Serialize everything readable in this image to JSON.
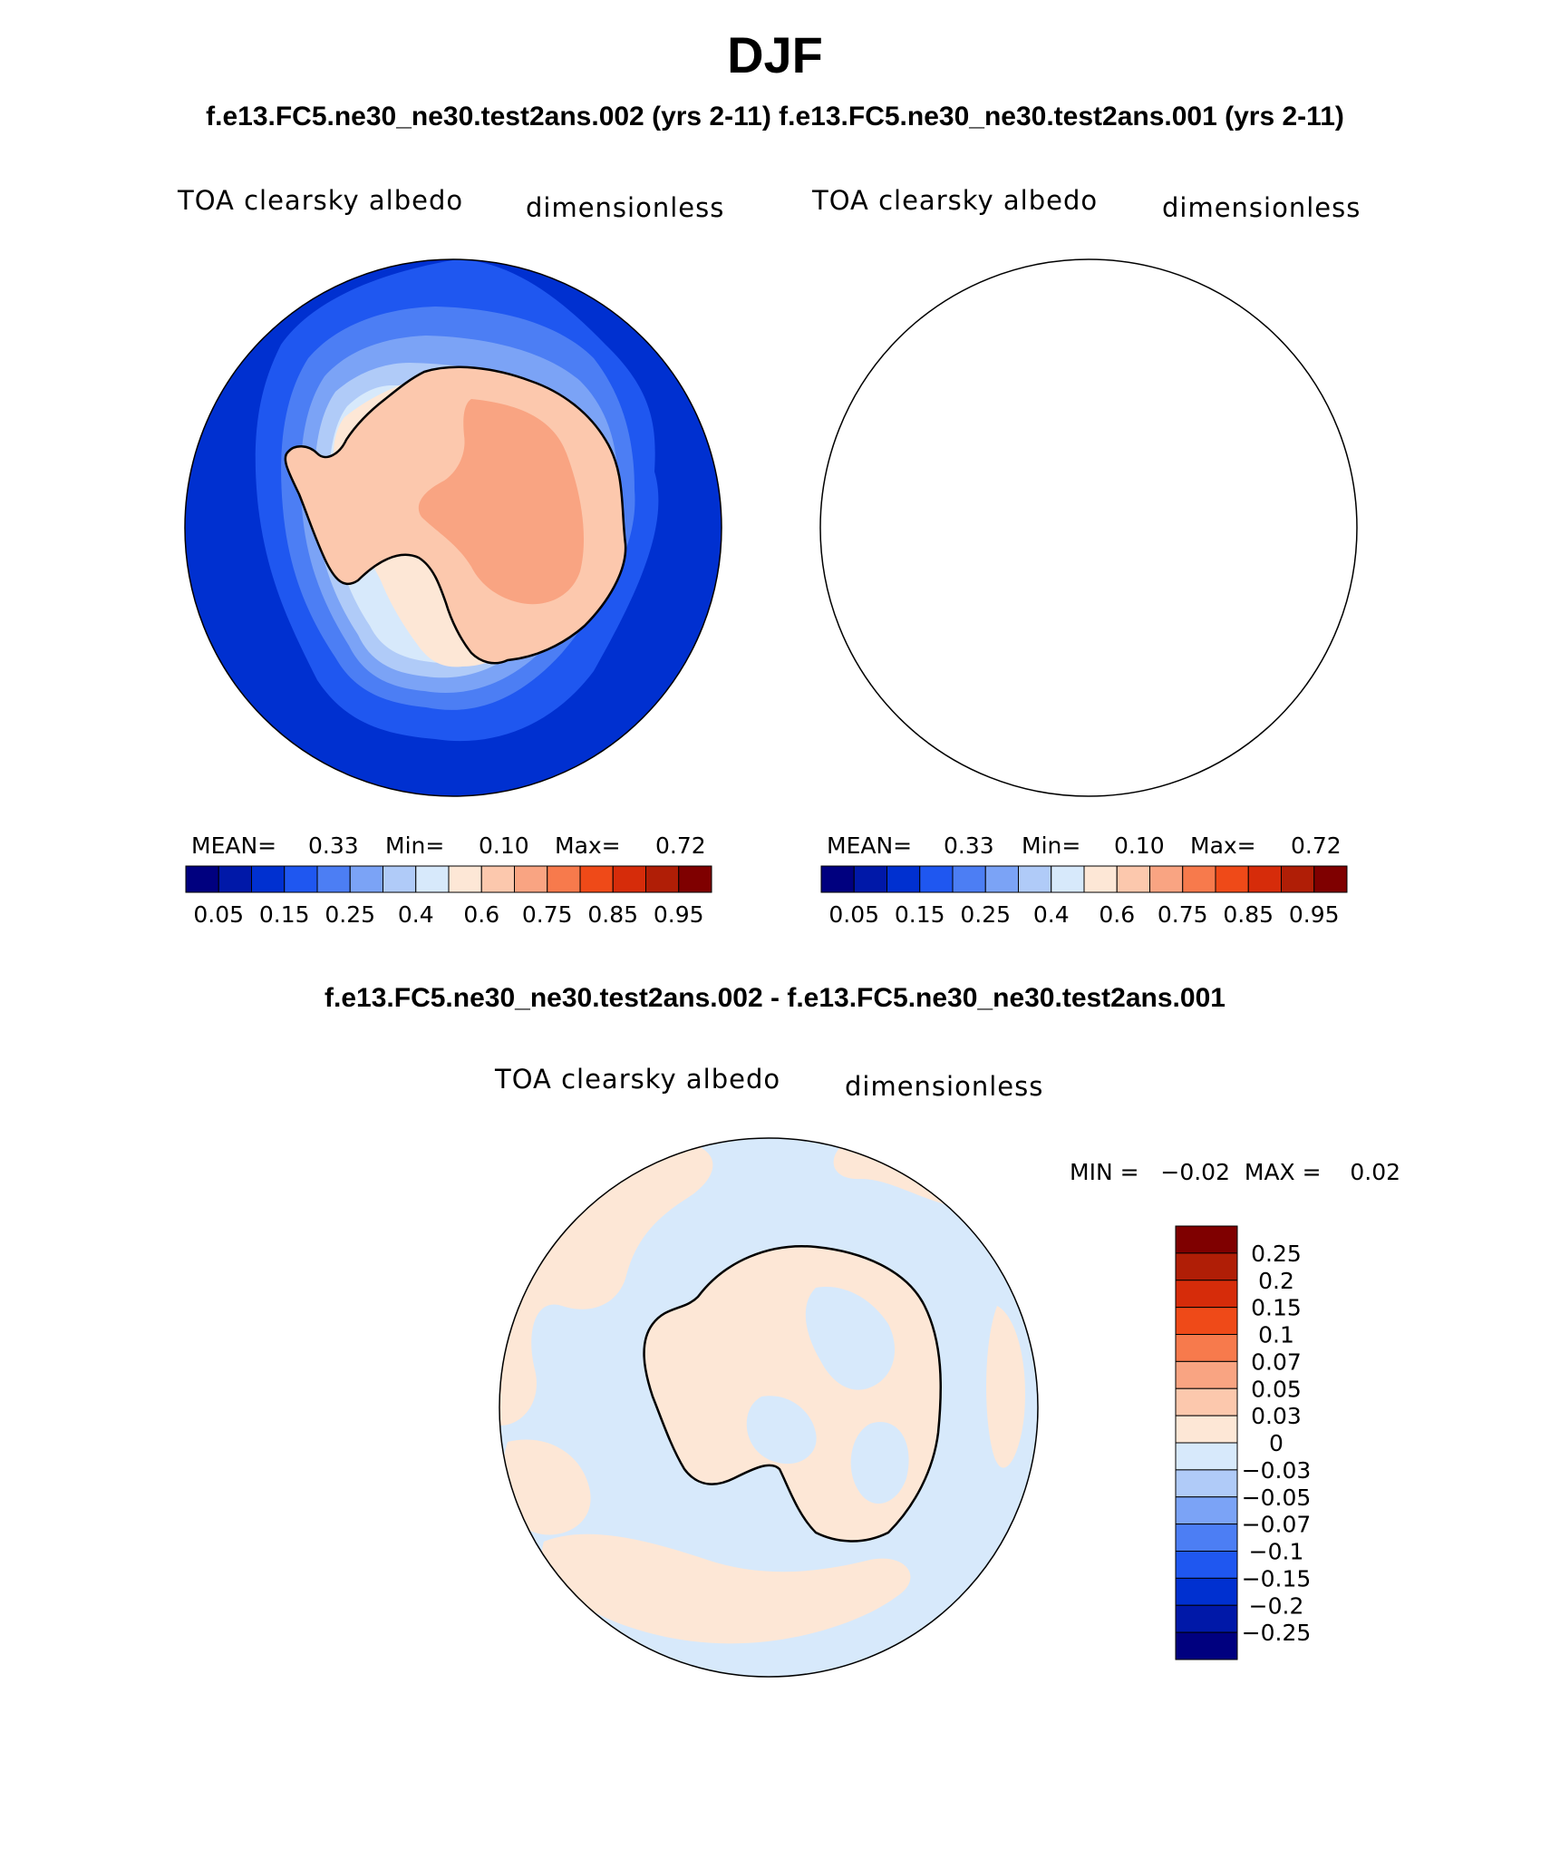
{
  "title": "DJF",
  "subtitle": "f.e13.FC5.ne30_ne30.test2ans.002 (yrs 2-11) f.e13.FC5.ne30_ne30.test2ans.001 (yrs 2-11)",
  "panels": [
    {
      "name": "test2ans.002",
      "variable": "TOA clearsky albedo",
      "units": "dimensionless",
      "stats": {
        "mean_label": "MEAN=",
        "mean": "0.33",
        "min_label": "Min=",
        "min": "0.10",
        "max_label": "Max=",
        "max": "0.72"
      }
    },
    {
      "name": "test2ans.001",
      "variable": "TOA clearsky albedo",
      "units": "dimensionless",
      "stats": {
        "mean_label": "MEAN=",
        "mean": "0.33",
        "min_label": "Min=",
        "min": "0.10",
        "max_label": "Max=",
        "max": "0.72"
      }
    }
  ],
  "colorbar": {
    "tick_labels": [
      "0.05",
      "0.15",
      "0.25",
      "0.4",
      "0.6",
      "0.75",
      "0.85",
      "0.95"
    ],
    "colors": [
      "#00007f",
      "#0018a8",
      "#0030d0",
      "#1f57f0",
      "#4c7ef4",
      "#7ba3f6",
      "#b0cbf8",
      "#d7e9fb",
      "#fde7d6",
      "#fcc8ad",
      "#f9a482",
      "#f77a4c",
      "#ef4a18",
      "#d62c0a",
      "#b01e06",
      "#7f0000"
    ]
  },
  "difference": {
    "title": "f.e13.FC5.ne30_ne30.test2ans.002 - f.e13.FC5.ne30_ne30.test2ans.001",
    "variable": "TOA clearsky albedo",
    "units": "dimensionless",
    "minmax_text": "MIN =   −0.02  MAX =    0.02",
    "colorbar_labels": [
      "0.25",
      "0.2",
      "0.15",
      "0.1",
      "0.07",
      "0.05",
      "0.03",
      "0",
      "−0.03",
      "−0.05",
      "−0.07",
      "−0.1",
      "−0.15",
      "−0.2",
      "−0.25"
    ],
    "colorbar_colors": [
      "#7f0000",
      "#b01e06",
      "#d62c0a",
      "#ef4a18",
      "#f77a4c",
      "#f9a482",
      "#fcc8ad",
      "#fde7d6",
      "#d7e9fb",
      "#b0cbf8",
      "#7ba3f6",
      "#4c7ef4",
      "#1f57f0",
      "#0030d0",
      "#0018a8",
      "#00007f"
    ]
  },
  "map_colors": {
    "ocean": "#0030d0",
    "band1": "#1f57f0",
    "band2": "#4c7ef4",
    "band3": "#7ba3f6",
    "band4": "#b0cbf8",
    "band5": "#d7e9fb",
    "ice_edge": "#fde7d6",
    "ice": "#fcc8ad",
    "plateau": "#f9a482",
    "diff_neg": "#d7e9fb",
    "diff_pos": "#fde7d6",
    "coast": "#000000"
  }
}
